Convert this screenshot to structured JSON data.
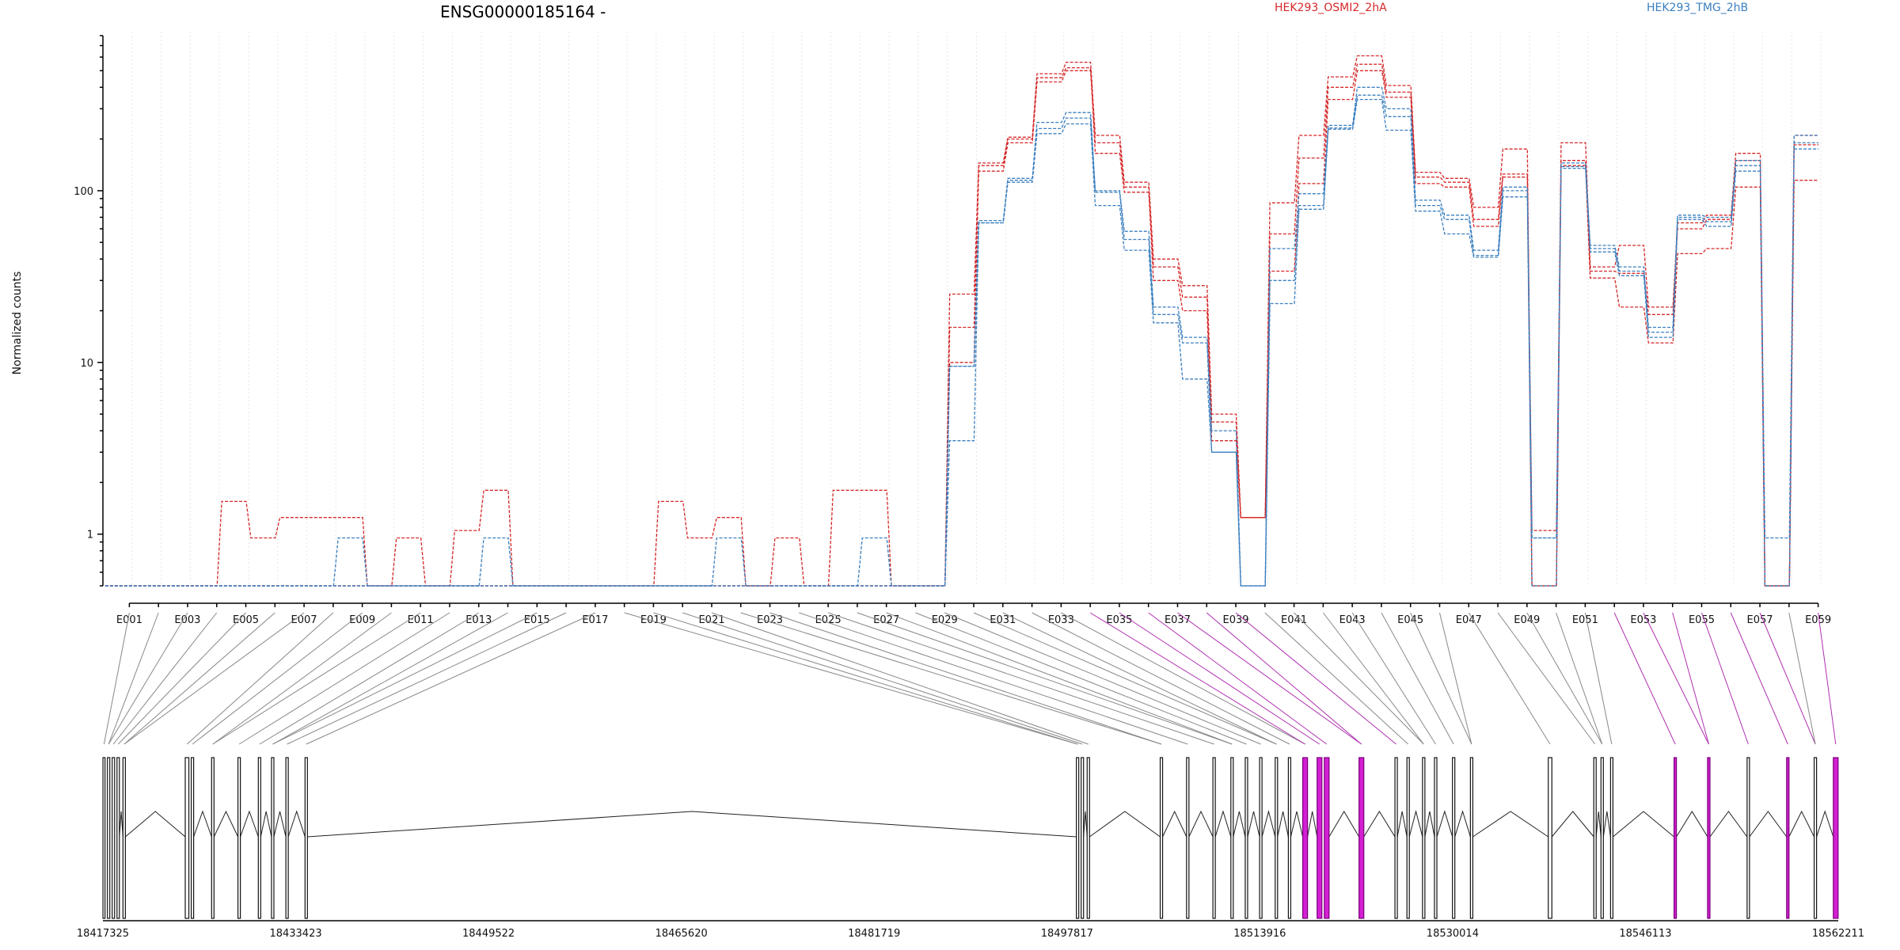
{
  "chart_data": {
    "type": "line",
    "title": "ENSG00000185164 -",
    "ylabel": "Normalized counts",
    "yscale": "log",
    "ylim": [
      0.5,
      800
    ],
    "yticks": [
      1,
      10,
      100
    ],
    "x_tick_labels": [
      "E001",
      "E003",
      "E005",
      "E007",
      "E009",
      "E011",
      "E013",
      "E015",
      "E017",
      "E019",
      "E021",
      "E023",
      "E025",
      "E027",
      "E029",
      "E031",
      "E033",
      "E035",
      "E037",
      "E039",
      "E041",
      "E043",
      "E045",
      "E047",
      "E049",
      "E051",
      "E053",
      "E055",
      "E057",
      "E059"
    ],
    "colors": {
      "HEK293_OSMI2_2hA": "#d62728",
      "HEK293_TMG_2hB": "#3a7fbf",
      "highlight": "#b030b0"
    },
    "series": [
      {
        "name": "HEK293_OSMI2_2hA",
        "replicate": 1,
        "values": [
          0.5,
          0.5,
          0.5,
          0.5,
          1.55,
          0.95,
          1.25,
          1.25,
          1.25,
          0.5,
          0.95,
          0.5,
          1.05,
          1.8,
          0.5,
          0.5,
          0.5,
          0.5,
          0.5,
          1.55,
          0.95,
          1.25,
          0.5,
          0.95,
          0.5,
          1.8,
          1.8,
          0.5,
          0.5,
          25,
          145,
          205,
          480,
          560,
          210,
          112,
          40,
          28,
          5,
          1.25,
          85,
          210,
          460,
          610,
          410,
          128,
          118,
          80,
          175,
          0.5,
          190,
          36,
          48,
          21,
          65,
          72,
          165,
          0.5,
          210
        ]
      },
      {
        "name": "HEK293_OSMI2_2hA",
        "replicate": 2,
        "values": [
          0.5,
          0.5,
          0.5,
          0.5,
          0.5,
          0.5,
          0.5,
          0.5,
          0.5,
          0.5,
          0.5,
          0.5,
          0.5,
          0.5,
          0.5,
          0.5,
          0.5,
          0.5,
          0.5,
          0.5,
          0.5,
          0.5,
          0.5,
          0.5,
          0.5,
          0.5,
          0.5,
          0.5,
          0.5,
          16,
          130,
          190,
          430,
          500,
          190,
          105,
          36,
          24,
          4.5,
          1.25,
          56,
          155,
          400,
          545,
          375,
          120,
          112,
          68,
          125,
          0.5,
          150,
          34,
          33,
          19,
          60,
          68,
          150,
          0.5,
          185
        ]
      },
      {
        "name": "HEK293_OSMI2_2hA",
        "replicate": 3,
        "values": [
          0.5,
          0.5,
          0.5,
          0.5,
          0.5,
          0.5,
          0.5,
          0.5,
          0.5,
          0.5,
          0.5,
          0.5,
          0.5,
          0.5,
          0.5,
          0.5,
          0.5,
          0.5,
          0.5,
          0.5,
          0.5,
          0.5,
          0.5,
          0.5,
          0.5,
          0.5,
          0.5,
          0.5,
          0.5,
          10,
          140,
          200,
          455,
          520,
          165,
          98,
          30,
          20,
          3.5,
          1.25,
          34,
          110,
          340,
          500,
          350,
          110,
          105,
          62,
          120,
          1.05,
          140,
          31,
          21,
          13,
          43,
          46,
          105,
          0.5,
          115
        ]
      },
      {
        "name": "HEK293_TMG_2hB",
        "replicate": 1,
        "values": [
          0.5,
          0.5,
          0.5,
          0.5,
          0.5,
          0.5,
          0.5,
          0.5,
          0.95,
          0.5,
          0.5,
          0.5,
          0.5,
          0.95,
          0.5,
          0.5,
          0.5,
          0.5,
          0.5,
          0.5,
          0.5,
          0.95,
          0.5,
          0.5,
          0.5,
          0.5,
          0.95,
          0.5,
          0.5,
          9.5,
          65,
          118,
          250,
          285,
          100,
          58,
          21,
          14,
          4,
          0.5,
          46,
          96,
          240,
          400,
          300,
          88,
          72,
          45,
          105,
          0.95,
          145,
          48,
          36,
          16,
          72,
          70,
          150,
          0.95,
          210
        ]
      },
      {
        "name": "HEK293_TMG_2hB",
        "replicate": 2,
        "values": [
          0.5,
          0.5,
          0.5,
          0.5,
          0.5,
          0.5,
          0.5,
          0.5,
          0.5,
          0.5,
          0.5,
          0.5,
          0.5,
          0.5,
          0.5,
          0.5,
          0.5,
          0.5,
          0.5,
          0.5,
          0.5,
          0.5,
          0.5,
          0.5,
          0.5,
          0.5,
          0.5,
          0.5,
          0.5,
          9.5,
          67,
          115,
          230,
          265,
          98,
          52,
          19,
          13,
          3,
          0.5,
          30,
          82,
          232,
          360,
          270,
          82,
          68,
          42,
          100,
          0.95,
          138,
          46,
          34,
          15,
          70,
          66,
          140,
          0.5,
          190
        ]
      },
      {
        "name": "HEK293_TMG_2hB",
        "replicate": 3,
        "values": [
          0.5,
          0.5,
          0.5,
          0.5,
          0.5,
          0.5,
          0.5,
          0.5,
          0.5,
          0.5,
          0.5,
          0.5,
          0.5,
          0.5,
          0.5,
          0.5,
          0.5,
          0.5,
          0.5,
          0.5,
          0.5,
          0.5,
          0.5,
          0.5,
          0.5,
          0.5,
          0.5,
          0.5,
          0.5,
          3.5,
          65,
          112,
          215,
          245,
          82,
          45,
          17,
          8,
          3,
          0.5,
          22,
          78,
          228,
          340,
          225,
          76,
          56,
          41,
          92,
          0.5,
          135,
          44,
          32,
          14,
          68,
          62,
          130,
          0.5,
          175
        ]
      }
    ],
    "genomic_axis": {
      "tick_labels": [
        "18417325",
        "18433423",
        "18449522",
        "18465620",
        "18481719",
        "18497817",
        "18513916",
        "18530014",
        "18546113",
        "18562211"
      ]
    },
    "exon_coords_kb": [
      [
        18417.33,
        18417.5
      ],
      [
        18417.7,
        18417.9
      ],
      [
        18418.1,
        18418.3
      ],
      [
        18418.5,
        18418.7
      ],
      [
        18419.0,
        18419.2
      ],
      [
        18424.2,
        18424.5
      ],
      [
        18424.7,
        18424.9
      ],
      [
        18426.4,
        18426.6
      ],
      [
        18428.6,
        18428.8
      ],
      [
        18430.3,
        18430.5
      ],
      [
        18431.4,
        18431.6
      ],
      [
        18432.6,
        18432.8
      ],
      [
        18434.2,
        18434.4
      ],
      [
        18498.6,
        18498.8
      ],
      [
        18499.0,
        18499.2
      ],
      [
        18499.5,
        18499.7
      ],
      [
        18505.6,
        18505.8
      ],
      [
        18507.8,
        18508.0
      ],
      [
        18510.0,
        18510.2
      ],
      [
        18511.5,
        18511.7
      ],
      [
        18512.7,
        18512.9
      ],
      [
        18513.9,
        18514.1
      ],
      [
        18515.2,
        18515.4
      ],
      [
        18516.3,
        18516.5
      ],
      [
        18517.5,
        18517.9
      ],
      [
        18518.7,
        18519.1
      ],
      [
        18519.3,
        18519.7
      ],
      [
        18522.2,
        18522.6
      ],
      [
        18525.2,
        18525.4
      ],
      [
        18526.2,
        18526.4
      ],
      [
        18527.5,
        18527.7
      ],
      [
        18528.5,
        18528.7
      ],
      [
        18530.0,
        18530.2
      ],
      [
        18531.5,
        18531.7
      ],
      [
        18538.0,
        18538.3
      ],
      [
        18541.8,
        18542.0
      ],
      [
        18542.4,
        18542.6
      ],
      [
        18543.2,
        18543.4
      ],
      [
        18548.5,
        18548.7
      ],
      [
        18551.3,
        18551.5
      ],
      [
        18554.6,
        18554.8
      ],
      [
        18557.9,
        18558.1
      ],
      [
        18560.2,
        18560.4
      ],
      [
        18561.8,
        18562.2
      ]
    ],
    "highlighted_exon_indices": [
      24,
      25,
      26,
      27,
      38,
      39,
      41,
      43
    ],
    "highlighted_bins": [
      33,
      34,
      35,
      36,
      37,
      38,
      51,
      52,
      53,
      54,
      55,
      56,
      58
    ],
    "grid": true,
    "legend_position": "top"
  }
}
